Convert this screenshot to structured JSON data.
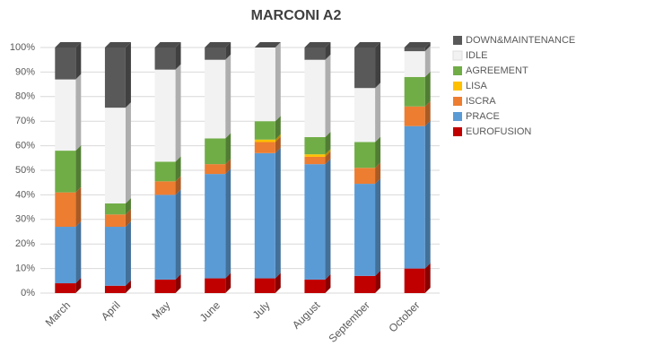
{
  "chart_data": {
    "type": "stacked-bar",
    "title": "MARCONI A2",
    "categories": [
      "March",
      "April",
      "May",
      "June",
      "July",
      "August",
      "September",
      "October"
    ],
    "series": [
      {
        "name": "EUROFUSION",
        "color": "#c00000",
        "values": [
          4,
          3,
          5.5,
          6,
          6,
          5.5,
          7,
          10
        ]
      },
      {
        "name": "PRACE",
        "color": "#5b9bd5",
        "values": [
          23,
          24,
          34.5,
          42.5,
          51,
          47,
          37.5,
          58
        ]
      },
      {
        "name": "ISCRA",
        "color": "#ed7d31",
        "values": [
          14,
          5,
          5.5,
          4,
          4.5,
          3,
          6.5,
          8
        ]
      },
      {
        "name": "LISA",
        "color": "#ffc000",
        "values": [
          0,
          0,
          0,
          0,
          1,
          1,
          0,
          0
        ]
      },
      {
        "name": "AGREEMENT",
        "color": "#70ad47",
        "values": [
          17,
          4.5,
          8,
          10.5,
          7.5,
          7,
          10.5,
          12
        ]
      },
      {
        "name": "IDLE",
        "color": "#f2f2f2",
        "values": [
          29,
          39,
          37.5,
          32,
          30,
          31.5,
          22,
          10.5
        ]
      },
      {
        "name": "DOWN&MAINTENANCE",
        "color": "#595959",
        "values": [
          13,
          24.5,
          9,
          5,
          0,
          5,
          16.5,
          1.5
        ]
      }
    ],
    "ylim": [
      0,
      100
    ],
    "yticks": [
      {
        "value": 0,
        "label": "0%"
      },
      {
        "value": 10,
        "label": "10%"
      },
      {
        "value": 20,
        "label": "20%"
      },
      {
        "value": 30,
        "label": "30%"
      },
      {
        "value": 40,
        "label": "40%"
      },
      {
        "value": 50,
        "label": "50%"
      },
      {
        "value": 60,
        "label": "60%"
      },
      {
        "value": 70,
        "label": "70%"
      },
      {
        "value": 80,
        "label": "80%"
      },
      {
        "value": 90,
        "label": "90%"
      },
      {
        "value": 100,
        "label": "100%"
      }
    ],
    "grid": true
  }
}
